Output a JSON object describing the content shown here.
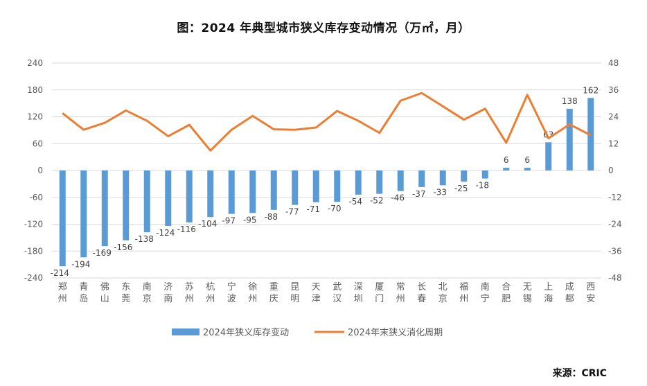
{
  "title": "图：2024 年典型城市狭义库存变动情况（万㎡，月）",
  "source": "来源：CRIC",
  "chart_data": {
    "type": "bar+line",
    "title": "图：2024 年典型城市狭义库存变动情况（万㎡，月）",
    "categories": [
      "郑州",
      "青岛",
      "佛山",
      "东莞",
      "南京",
      "济南",
      "苏州",
      "杭州",
      "宁波",
      "徐州",
      "重庆",
      "昆明",
      "天津",
      "武汉",
      "深圳",
      "厦门",
      "常州",
      "长春",
      "北京",
      "福州",
      "南宁",
      "合肥",
      "无锡",
      "上海",
      "成都",
      "西安"
    ],
    "series": [
      {
        "name": "2024年狭义库存变动",
        "type": "bar",
        "axis": "left",
        "color": "#5B9BD5",
        "values": [
          -214,
          -194,
          -169,
          -156,
          -138,
          -124,
          -116,
          -104,
          -97,
          -95,
          -88,
          -77,
          -71,
          -70,
          -54,
          -52,
          -46,
          -37,
          -33,
          -25,
          -18,
          6,
          6,
          63,
          138,
          162
        ]
      },
      {
        "name": "2024年末狭义消化周期",
        "type": "line",
        "axis": "right",
        "color": "#ED7D31",
        "values": [
          25.6,
          18.2,
          21.3,
          26.8,
          22.2,
          15.3,
          20.4,
          8.9,
          18.2,
          24.4,
          18.4,
          18.2,
          19.2,
          26.6,
          22.2,
          16.8,
          31.2,
          34.6,
          28.7,
          22.7,
          27.6,
          12.4,
          33.8,
          14.4,
          20.6,
          15.8
        ]
      }
    ],
    "left_axis": {
      "range": [
        -240,
        240
      ],
      "ticks": [
        "240",
        "180",
        "120",
        "60",
        "0",
        "-60",
        "-120",
        "-180",
        "-240"
      ]
    },
    "right_axis": {
      "range": [
        -48,
        48
      ],
      "ticks": [
        "48",
        "36",
        "24",
        "12",
        "0",
        "-12",
        "-24",
        "-36",
        "-48"
      ]
    },
    "grid": true,
    "legend": "bottom"
  }
}
